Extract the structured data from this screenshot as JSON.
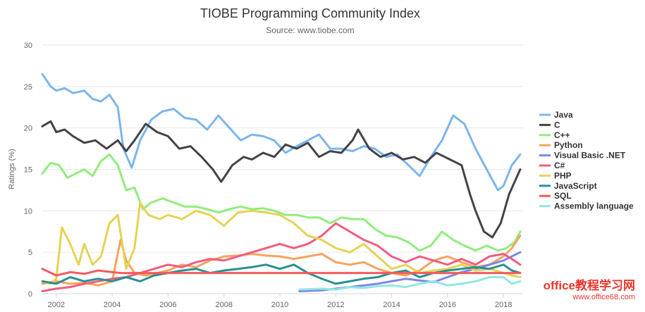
{
  "chart_data": {
    "type": "line",
    "title": "TIOBE Programming Community Index",
    "subtitle": "Source: www.tiobe.com",
    "ylabel": "Ratings (%)",
    "xlabel": "",
    "ylim": [
      0,
      30
    ],
    "yticks": [
      0,
      5,
      10,
      15,
      20,
      25,
      30
    ],
    "xlim": [
      2001.5,
      2018.7
    ],
    "xticks": [
      "2002",
      "2004",
      "2006",
      "2008",
      "2010",
      "2012",
      "2014",
      "2016",
      "2018"
    ],
    "grid": true,
    "legend_position": "right",
    "series": [
      {
        "name": "Java",
        "color": "#7cb5ec",
        "x": [
          2001.5,
          2001.8,
          2002.0,
          2002.3,
          2002.6,
          2003.0,
          2003.3,
          2003.6,
          2003.9,
          2004.2,
          2004.4,
          2004.7,
          2005.0,
          2005.4,
          2005.8,
          2006.2,
          2006.6,
          2007.0,
          2007.4,
          2007.8,
          2008.2,
          2008.6,
          2009.0,
          2009.4,
          2009.8,
          2010.2,
          2010.6,
          2011.0,
          2011.4,
          2011.8,
          2012.2,
          2012.6,
          2013.0,
          2013.4,
          2013.8,
          2014.2,
          2014.6,
          2015.0,
          2015.4,
          2015.8,
          2016.2,
          2016.6,
          2017.0,
          2017.4,
          2017.8,
          2018.0,
          2018.3,
          2018.6
        ],
        "y": [
          26.5,
          25,
          24.5,
          24.8,
          24.2,
          24.5,
          23.5,
          23.2,
          24,
          22.5,
          17.5,
          15.2,
          18.5,
          21,
          22,
          22.3,
          21.2,
          21,
          19.8,
          21.5,
          20,
          18.5,
          19.2,
          19,
          18.5,
          17,
          17.8,
          18.5,
          19.2,
          17.5,
          17.5,
          17.2,
          17.8,
          17.5,
          16.5,
          16.8,
          15.5,
          14.2,
          16.5,
          18.5,
          21.5,
          20.5,
          17.5,
          15,
          12.5,
          13,
          15.5,
          16.8
        ]
      },
      {
        "name": "C",
        "color": "#434348",
        "x": [
          2001.5,
          2001.8,
          2002.0,
          2002.3,
          2002.6,
          2003.0,
          2003.4,
          2003.8,
          2004.2,
          2004.5,
          2004.8,
          2005.2,
          2005.6,
          2006.0,
          2006.4,
          2006.8,
          2007.2,
          2007.6,
          2007.9,
          2008.3,
          2008.7,
          2009.0,
          2009.4,
          2009.8,
          2010.2,
          2010.6,
          2011.0,
          2011.4,
          2011.8,
          2012.2,
          2012.6,
          2012.8,
          2013.2,
          2013.6,
          2014.0,
          2014.4,
          2014.8,
          2015.2,
          2015.6,
          2015.9,
          2016.2,
          2016.5,
          2016.8,
          2017.0,
          2017.3,
          2017.6,
          2017.9,
          2018.2,
          2018.6
        ],
        "y": [
          20.2,
          20.8,
          19.5,
          19.8,
          19,
          18.2,
          18.5,
          17.5,
          18.5,
          17.2,
          18.5,
          20.5,
          19.5,
          19,
          17.5,
          17.8,
          16.5,
          15,
          13.5,
          15.5,
          16.5,
          16.2,
          17,
          16.5,
          18,
          17.5,
          18.2,
          16.5,
          17.2,
          17,
          18.5,
          19.8,
          17.5,
          16.5,
          17,
          16.2,
          16.5,
          15.8,
          17,
          16.5,
          16,
          15.5,
          12,
          10,
          7.5,
          6.8,
          8.5,
          12,
          15
        ]
      },
      {
        "name": "C++",
        "color": "#90ed7d",
        "x": [
          2001.5,
          2001.8,
          2002.1,
          2002.4,
          2002.7,
          2003.0,
          2003.3,
          2003.6,
          2003.9,
          2004.2,
          2004.5,
          2004.8,
          2005.1,
          2005.4,
          2005.8,
          2006.2,
          2006.6,
          2007.0,
          2007.4,
          2007.8,
          2008.2,
          2008.6,
          2009.0,
          2009.4,
          2009.8,
          2010.2,
          2010.6,
          2011.0,
          2011.4,
          2011.8,
          2012.2,
          2012.6,
          2013.0,
          2013.4,
          2013.8,
          2014.2,
          2014.6,
          2015.0,
          2015.4,
          2015.8,
          2016.2,
          2016.6,
          2017.0,
          2017.4,
          2017.8,
          2018.1,
          2018.4,
          2018.6
        ],
        "y": [
          14.5,
          15.8,
          15.5,
          14,
          14.5,
          15,
          14.2,
          16,
          16.8,
          15.5,
          12.5,
          12.8,
          10.2,
          11,
          11.5,
          11,
          10.5,
          10.5,
          10.2,
          9.8,
          10.2,
          10.5,
          10.2,
          10.3,
          10,
          9.5,
          9.5,
          9.2,
          9.2,
          8.5,
          9.2,
          9,
          9,
          7.8,
          7,
          6.8,
          6.2,
          5.2,
          5.8,
          7.5,
          6.5,
          5.8,
          5.2,
          5.8,
          5.2,
          5.5,
          6.2,
          7.5
        ]
      },
      {
        "name": "Python",
        "color": "#f7a35c",
        "x": [
          2001.5,
          2002.0,
          2002.5,
          2003.0,
          2003.5,
          2004.0,
          2004.3,
          2004.5,
          2004.8,
          2005.2,
          2005.6,
          2006.0,
          2006.5,
          2007.0,
          2007.5,
          2008.0,
          2008.5,
          2009.0,
          2009.5,
          2010.0,
          2010.5,
          2011.0,
          2011.5,
          2012.0,
          2012.5,
          2013.0,
          2013.5,
          2014.0,
          2014.5,
          2015.0,
          2015.5,
          2016.0,
          2016.5,
          2017.0,
          2017.5,
          2018.0,
          2018.3,
          2018.6
        ],
        "y": [
          1.2,
          1.5,
          1.2,
          1.3,
          1.0,
          1.5,
          6.5,
          4.0,
          2.5,
          2.2,
          2.5,
          2.8,
          3.5,
          3.2,
          4.0,
          4.5,
          4.6,
          4.8,
          4.6,
          4.5,
          4.2,
          4.5,
          4.8,
          3.8,
          3.5,
          3.8,
          3.0,
          2.5,
          2.2,
          2.8,
          4.0,
          4.5,
          3.8,
          3.2,
          3.5,
          4.5,
          5.5,
          7.0
        ]
      },
      {
        "name": "Visual Basic .NET",
        "color": "#8085e9",
        "x": [
          2010.7,
          2011.5,
          2012.0,
          2012.5,
          2013.0,
          2013.5,
          2014.0,
          2014.5,
          2015.0,
          2015.5,
          2016.0,
          2016.5,
          2017.0,
          2017.5,
          2018.0,
          2018.6
        ],
        "y": [
          0.3,
          0.4,
          0.6,
          0.8,
          1.0,
          1.2,
          1.5,
          1.8,
          1.6,
          1.4,
          2.0,
          2.6,
          3.0,
          3.5,
          4.0,
          5.0
        ]
      },
      {
        "name": "C#",
        "color": "#f15c80",
        "x": [
          2001.5,
          2002.0,
          2002.5,
          2003.0,
          2003.5,
          2004.0,
          2004.5,
          2005.0,
          2005.5,
          2006.0,
          2006.5,
          2007.0,
          2007.5,
          2008.0,
          2008.5,
          2009.0,
          2009.5,
          2010.0,
          2010.5,
          2011.0,
          2011.5,
          2012.0,
          2012.5,
          2013.0,
          2013.5,
          2014.0,
          2014.5,
          2015.0,
          2015.5,
          2016.0,
          2016.5,
          2017.0,
          2017.5,
          2018.0,
          2018.3,
          2018.6
        ],
        "y": [
          0.3,
          0.6,
          0.8,
          1.2,
          1.5,
          1.8,
          2.0,
          2.5,
          3.0,
          3.5,
          3.2,
          3.8,
          4.2,
          4.0,
          4.5,
          5.0,
          5.5,
          6.0,
          5.5,
          6.0,
          7.0,
          8.5,
          7.5,
          6.5,
          5.8,
          4.5,
          3.8,
          4.5,
          4.0,
          3.5,
          4.2,
          3.5,
          4.5,
          4.8,
          4.2,
          3.5
        ]
      },
      {
        "name": "PHP",
        "color": "#e4d354",
        "x": [
          2001.5,
          2001.8,
          2002.0,
          2002.2,
          2002.5,
          2002.8,
          2003.0,
          2003.3,
          2003.6,
          2003.9,
          2004.2,
          2004.5,
          2004.8,
          2005.0,
          2005.3,
          2005.7,
          2006.0,
          2006.5,
          2007.0,
          2007.5,
          2008.0,
          2008.5,
          2009.0,
          2009.5,
          2010.0,
          2010.5,
          2011.0,
          2011.5,
          2012.0,
          2012.5,
          2013.0,
          2013.5,
          2014.0,
          2014.5,
          2015.0,
          2015.5,
          2016.0,
          2016.5,
          2017.0,
          2017.5,
          2018.0,
          2018.3,
          2018.6
        ],
        "y": [
          1.5,
          1.2,
          1.8,
          8.0,
          6.0,
          3.5,
          6.0,
          3.5,
          4.5,
          8.5,
          9.5,
          3.0,
          5.5,
          11.0,
          9.5,
          9.0,
          9.5,
          9.0,
          10.0,
          9.5,
          8.2,
          9.8,
          10.0,
          9.8,
          9.5,
          8.5,
          7.0,
          6.5,
          5.5,
          5.0,
          6.0,
          4.5,
          3.0,
          3.5,
          2.5,
          2.8,
          3.0,
          3.5,
          2.8,
          3.0,
          2.5,
          2.2,
          2.0
        ]
      },
      {
        "name": "JavaScript",
        "color": "#2b908f",
        "x": [
          2001.5,
          2002.0,
          2002.5,
          2003.0,
          2003.5,
          2004.0,
          2004.5,
          2005.0,
          2005.5,
          2006.0,
          2006.5,
          2007.0,
          2007.5,
          2008.0,
          2008.5,
          2009.0,
          2009.5,
          2010.0,
          2010.5,
          2011.0,
          2011.5,
          2012.0,
          2012.5,
          2013.0,
          2013.5,
          2014.0,
          2014.5,
          2015.0,
          2015.5,
          2016.0,
          2016.5,
          2017.0,
          2017.5,
          2018.0,
          2018.3,
          2018.6
        ],
        "y": [
          1.5,
          1.2,
          2.0,
          1.5,
          1.8,
          1.5,
          2.0,
          1.5,
          2.2,
          2.5,
          2.8,
          3.0,
          2.5,
          2.8,
          3.0,
          3.2,
          3.5,
          3.0,
          3.5,
          2.5,
          1.8,
          1.2,
          1.5,
          1.8,
          2.0,
          2.5,
          2.8,
          2.0,
          2.5,
          2.8,
          3.0,
          3.2,
          3.0,
          3.5,
          2.8,
          2.5
        ]
      },
      {
        "name": "SQL",
        "color": "#f45b5b",
        "x": [
          2001.5,
          2002.0,
          2002.5,
          2003.0,
          2003.5,
          2004.0,
          2004.3,
          2018.6
        ],
        "y": [
          3.0,
          2.2,
          2.6,
          2.4,
          2.8,
          2.6,
          2.5,
          2.5
        ]
      },
      {
        "name": "Assembly language",
        "color": "#91e8e1",
        "x": [
          2010.7,
          2011.5,
          2012.0,
          2012.5,
          2013.0,
          2013.5,
          2014.0,
          2014.5,
          2015.0,
          2015.5,
          2016.0,
          2016.5,
          2017.0,
          2017.5,
          2018.0,
          2018.3,
          2018.6
        ],
        "y": [
          0.5,
          0.6,
          0.5,
          0.8,
          0.7,
          0.9,
          1.0,
          0.8,
          1.2,
          1.5,
          1.0,
          1.2,
          1.5,
          2.0,
          2.0,
          1.2,
          1.5
        ]
      }
    ]
  },
  "watermark": {
    "main": "office教程学习网",
    "url": "www.office68.com"
  }
}
